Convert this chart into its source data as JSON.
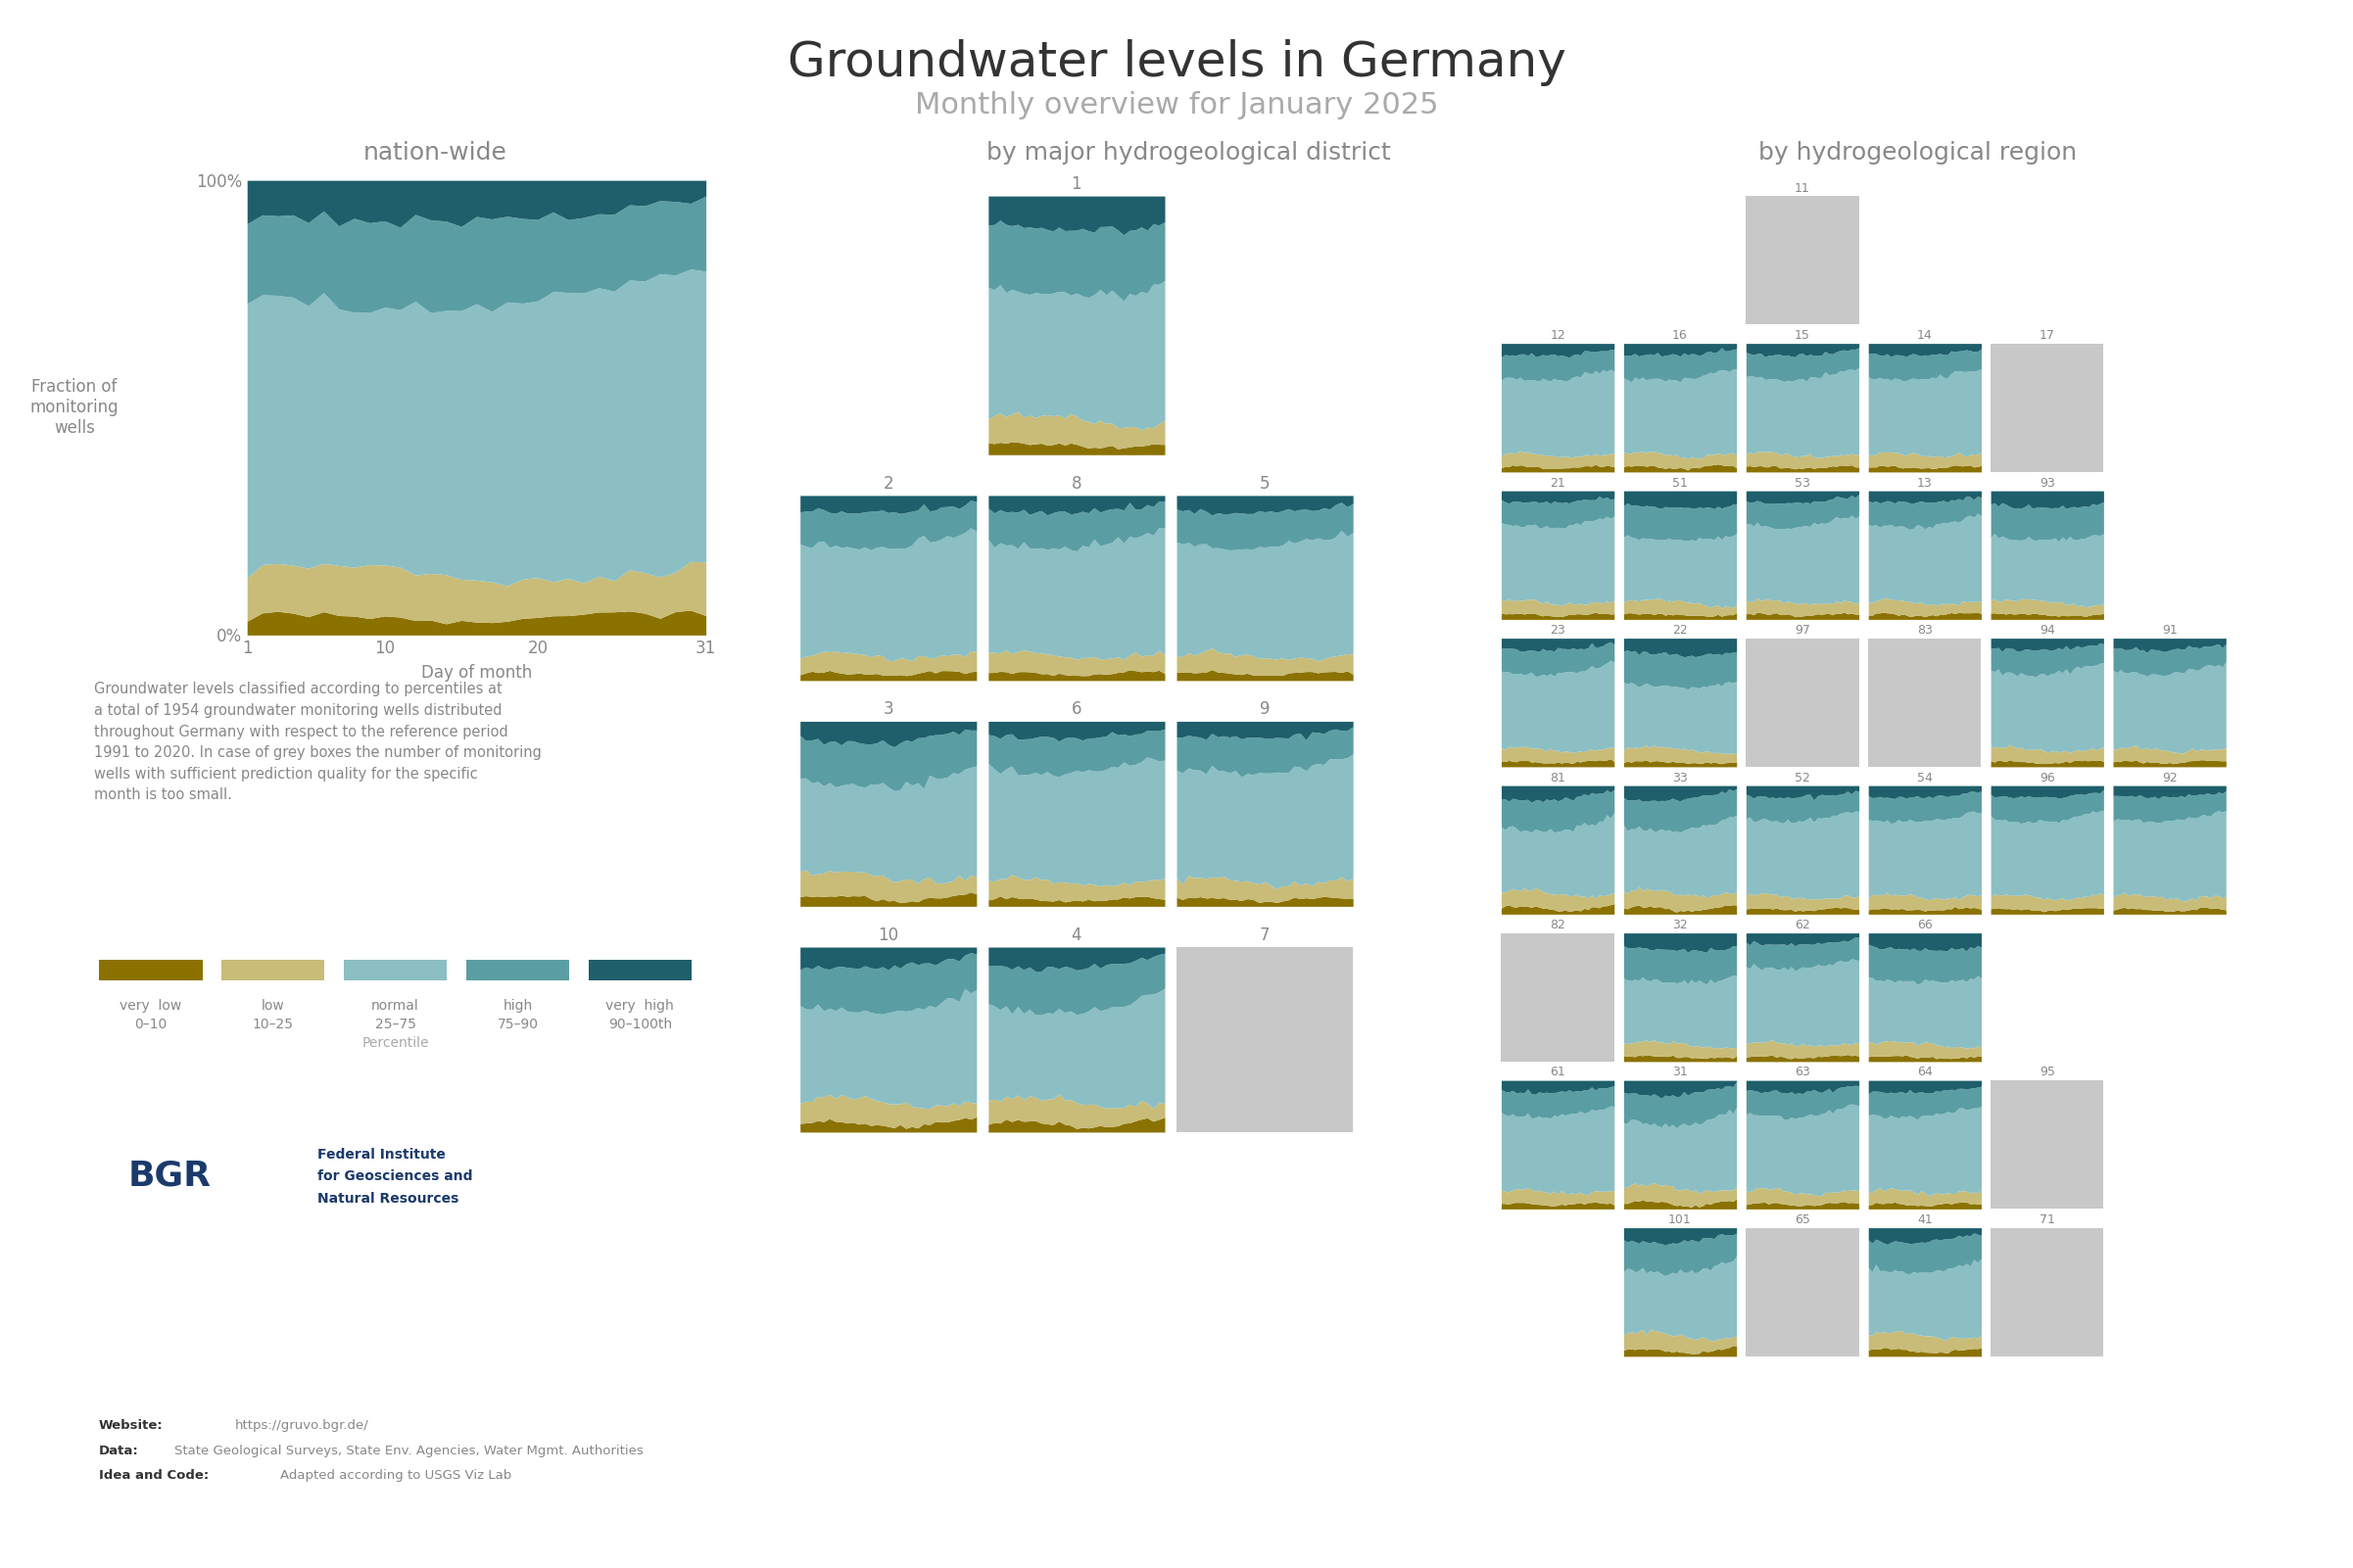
{
  "title": "Groundwater levels in Germany",
  "subtitle": "Monthly overview for January 2025",
  "title_fontsize": 36,
  "subtitle_fontsize": 22,
  "colors": {
    "very_low": "#8B7200",
    "low": "#C8BC78",
    "normal": "#8BBFC4",
    "high": "#5A9EA3",
    "very_high": "#1E5F6B",
    "grey": "#C8C8C8",
    "background": "#FFFFFF",
    "text_dark": "#333333",
    "text_mid": "#888888",
    "text_light": "#AAAAAA"
  },
  "nation_wide_label": "nation-wide",
  "district_label": "by major hydrogeological district",
  "region_label": "by hydrogeological region",
  "ylabel": "Fraction of\nmonitoring\nwells",
  "xlabel": "Day of month",
  "annotation_text": "Groundwater levels classified according to percentiles at\na total of 1954 groundwater monitoring wells distributed\nthroughout Germany with respect to the reference period\n1991 to 2020. In case of grey boxes the number of monitoring\nwells with sufficient prediction quality for the specific\nmonth is too small.",
  "legend_labels_line1": [
    "very  low",
    "low",
    "normal",
    "high",
    "very  high"
  ],
  "legend_labels_line2": [
    "0–10",
    "10–25",
    "25–75",
    "75–90",
    "90–100th"
  ],
  "legend_sublabel": "Percentile",
  "website_bold": "Website:",
  "website_normal": "https://gruvo.bgr.de/",
  "data_bold": "Data:",
  "data_normal": "State Geological Surveys, State Env. Agencies, Water Mgmt. Authorities",
  "idea_bold": "Idea and Code:",
  "idea_normal": "Adapted according to USGS Viz Lab",
  "bgr_text1": "Federal Institute",
  "bgr_text2": "for Geosciences and",
  "bgr_text3": "Natural Resources",
  "districts_layout": [
    [
      null,
      "1",
      null
    ],
    [
      "2",
      "8",
      "5"
    ],
    [
      "3",
      "6",
      "9"
    ],
    [
      "10",
      "4",
      "7"
    ]
  ],
  "regions_layout": [
    [
      null,
      null,
      "11",
      null,
      null,
      null
    ],
    [
      "12",
      "16",
      "15",
      "14",
      "17",
      null
    ],
    [
      "21",
      "51",
      "53",
      "13",
      "93",
      null
    ],
    [
      "23",
      "22",
      "97",
      "83",
      "94",
      "91"
    ],
    [
      "81",
      "33",
      "52",
      "54",
      "96",
      "92"
    ],
    [
      "82",
      "32",
      "62",
      "66",
      null,
      null
    ],
    [
      "61",
      "31",
      "63",
      "64",
      "95",
      null
    ],
    [
      null,
      "101",
      "65",
      "41",
      "71",
      null
    ]
  ],
  "grey_districts": [
    "7"
  ],
  "grey_regions": [
    "11",
    "17",
    "97",
    "83",
    "82",
    "95"
  ]
}
